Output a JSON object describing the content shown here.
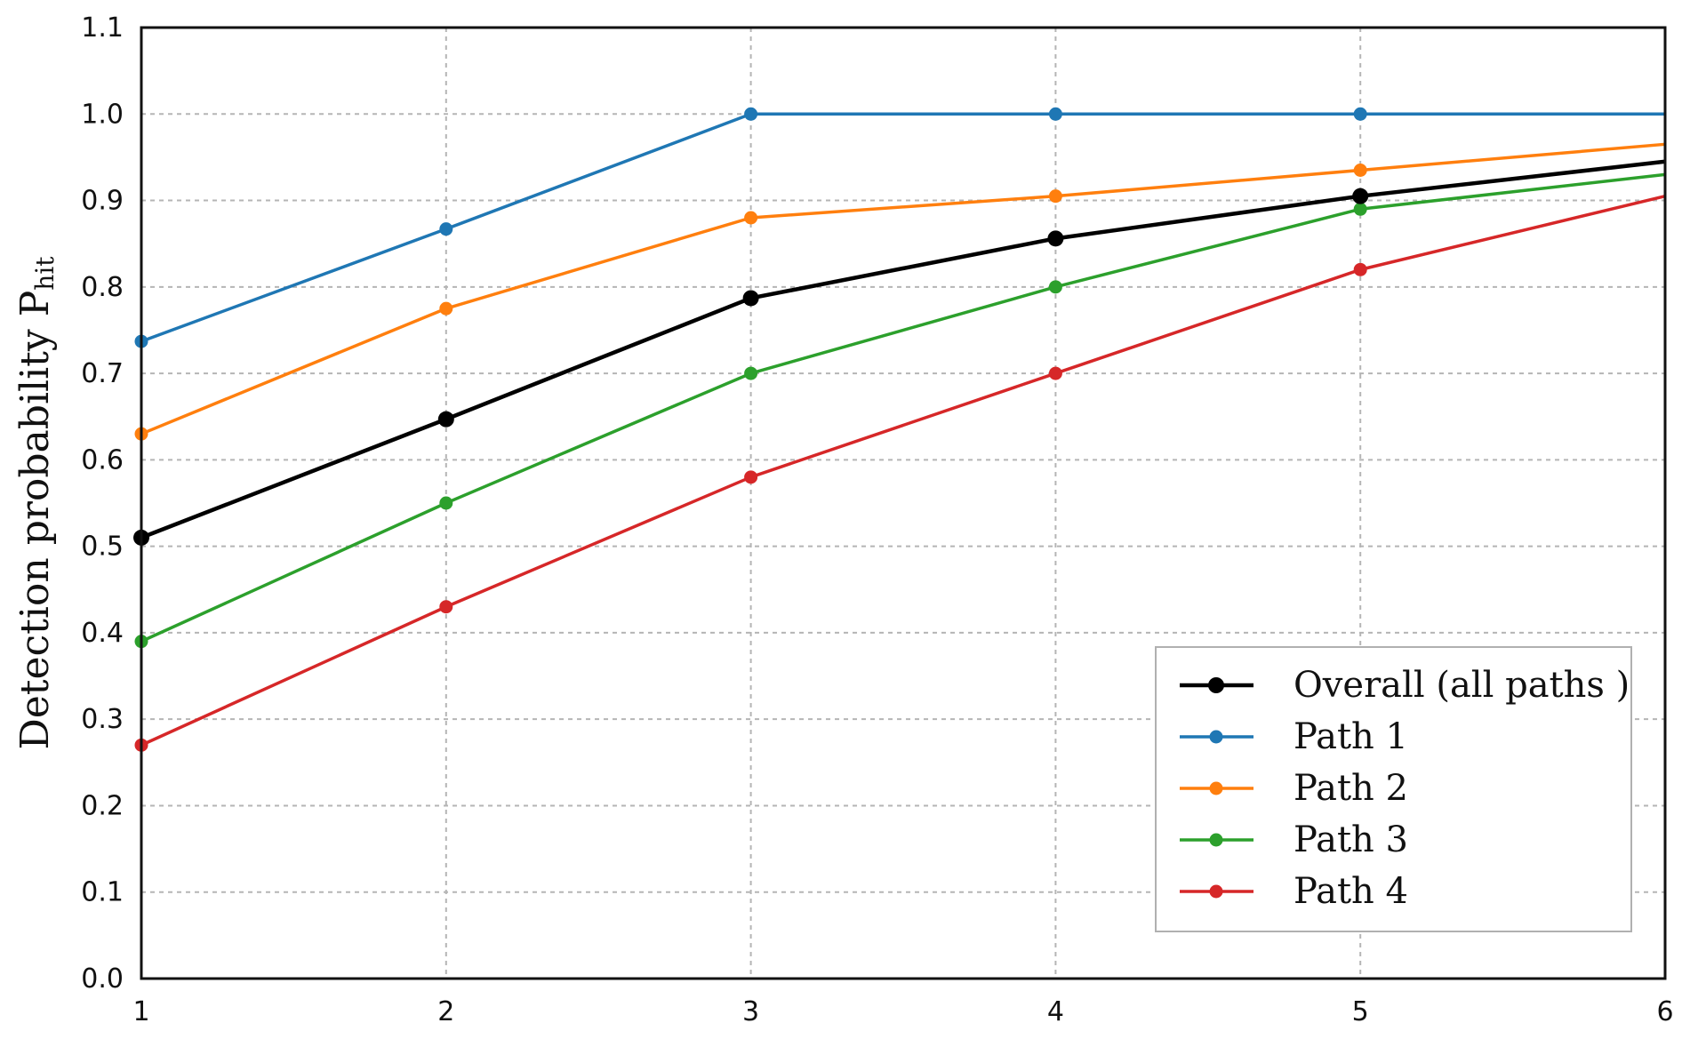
{
  "chart_data": {
    "type": "line",
    "x": [
      1,
      2,
      3,
      4,
      5,
      6
    ],
    "xlim": [
      1,
      6
    ],
    "ylim": [
      0.0,
      1.1
    ],
    "xticks": [
      "1",
      "2",
      "3",
      "4",
      "5",
      "6"
    ],
    "yticks": [
      "0.0",
      "0.1",
      "0.2",
      "0.3",
      "0.4",
      "0.5",
      "0.6",
      "0.7",
      "0.8",
      "0.9",
      "1.0",
      "1.1"
    ],
    "ylabel": "Detection probability P",
    "ylabel_subscript": "hit",
    "xlabel": "",
    "title": "",
    "grid": true,
    "legend_position": "bottom-right",
    "series": [
      {
        "name": "Overall (all paths )",
        "color": "#000000",
        "values": [
          0.51,
          0.647,
          0.787,
          0.856,
          0.905,
          0.945
        ]
      },
      {
        "name": "Path 1",
        "color": "#1f77b4",
        "values": [
          0.737,
          0.867,
          1.0,
          1.0,
          1.0,
          1.0
        ]
      },
      {
        "name": "Path 2",
        "color": "#ff7f0e",
        "values": [
          0.63,
          0.775,
          0.88,
          0.905,
          0.935,
          0.965
        ]
      },
      {
        "name": "Path 3",
        "color": "#2ca02c",
        "values": [
          0.39,
          0.55,
          0.7,
          0.8,
          0.89,
          0.93
        ]
      },
      {
        "name": "Path 4",
        "color": "#d62728",
        "values": [
          0.27,
          0.43,
          0.58,
          0.7,
          0.82,
          0.905
        ]
      }
    ]
  }
}
